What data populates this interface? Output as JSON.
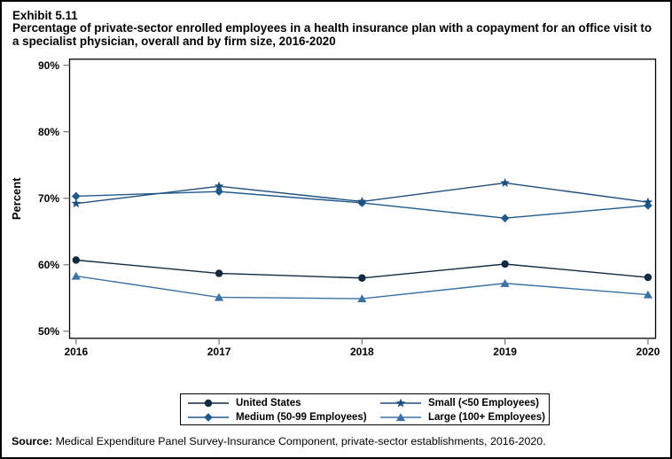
{
  "header": {
    "exhibit": "Exhibit 5.11",
    "subtitle": "Percentage of private-sector enrolled employees in a health insurance plan with a copayment for an office visit to a specialist physician, overall and by firm size, 2016-2020"
  },
  "source": {
    "label": "Source:",
    "text": " Medical Expenditure Panel Survey-Insurance Component, private-sector establishments, 2016-2020."
  },
  "chart_data": {
    "type": "line",
    "title": "Exhibit 5.11",
    "xlabel": "",
    "ylabel": "Percent",
    "x": [
      2016,
      2017,
      2018,
      2019,
      2020
    ],
    "x_tick_labels": [
      "2016",
      "2017",
      "2018",
      "2019",
      "2020"
    ],
    "ylim": [
      50,
      90
    ],
    "yticks": [
      50,
      60,
      70,
      80,
      90
    ],
    "ytick_format": "percent",
    "grid": false,
    "legend_position": "bottom",
    "series": [
      {
        "name": "United States",
        "marker": "circle",
        "color": "#112a42",
        "values": [
          60.7,
          58.7,
          58.0,
          60.1,
          58.1
        ]
      },
      {
        "name": "Medium (50-99 Employees)",
        "marker": "diamond",
        "color": "#21598a",
        "values": [
          70.3,
          71.0,
          69.3,
          67.0,
          68.9
        ]
      },
      {
        "name": "Small (<50 Employees)",
        "marker": "star",
        "color": "#1e4f7c",
        "values": [
          69.2,
          71.8,
          69.5,
          72.3,
          69.4
        ]
      },
      {
        "name": "Large (100+ Employees)",
        "marker": "triangle",
        "color": "#3c71a5",
        "values": [
          58.3,
          55.1,
          54.9,
          57.2,
          55.5
        ]
      }
    ]
  }
}
